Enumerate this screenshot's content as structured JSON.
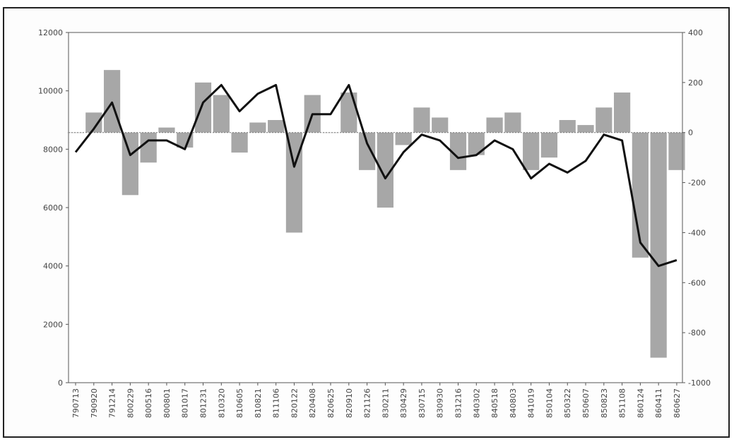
{
  "chart_data": {
    "type": "bar",
    "title": "",
    "xlabel": "",
    "ylabel": "",
    "ylabel_right": "",
    "ylim": [
      0,
      12000
    ],
    "ylim_right": [
      -1000,
      400
    ],
    "yticks_left": [
      "12000",
      "10000",
      "8000",
      "6000",
      "4000",
      "2000",
      "0"
    ],
    "yticks_left_values": [
      12000,
      10000,
      8000,
      6000,
      4000,
      2000,
      0
    ],
    "yticks_right": [
      "400",
      "200",
      "0",
      "-200",
      "-400",
      "-600",
      "-800",
      "-1000"
    ],
    "yticks_right_values": [
      400,
      200,
      0,
      -200,
      -400,
      -600,
      -800,
      -1000
    ],
    "categories": [
      "790713",
      "790920",
      "791214",
      "800229",
      "800516",
      "800801",
      "801017",
      "801231",
      "810320",
      "810605",
      "810821",
      "811106",
      "820122",
      "820408",
      "820625",
      "820910",
      "821126",
      "830211",
      "830429",
      "830715",
      "830930",
      "831216",
      "840302",
      "840518",
      "840803",
      "841019",
      "850104",
      "850322",
      "850607",
      "850823",
      "851108",
      "860124",
      "860411",
      "860627"
    ],
    "series": [
      {
        "name": "",
        "type": "line",
        "axis": "left",
        "color": "#111111",
        "values": [
          7900,
          8700,
          9600,
          7800,
          8300,
          8300,
          8000,
          9600,
          10200,
          9300,
          9900,
          10200,
          7400,
          9200,
          9200,
          10200,
          8200,
          7000,
          7900,
          8500,
          8300,
          7700,
          7800,
          8300,
          8000,
          7000,
          7500,
          7200,
          7600,
          8500,
          8300,
          4800,
          4000,
          4200
        ]
      },
      {
        "name": "",
        "type": "bar",
        "axis": "right",
        "color": "#8a8a8a",
        "values": [
          0,
          80,
          250,
          -250,
          -120,
          20,
          -60,
          200,
          150,
          -80,
          40,
          50,
          -400,
          150,
          0,
          160,
          -150,
          -300,
          -50,
          100,
          60,
          -150,
          -90,
          60,
          80,
          -150,
          -100,
          50,
          30,
          100,
          160,
          -500,
          -900,
          -150
        ]
      }
    ]
  }
}
